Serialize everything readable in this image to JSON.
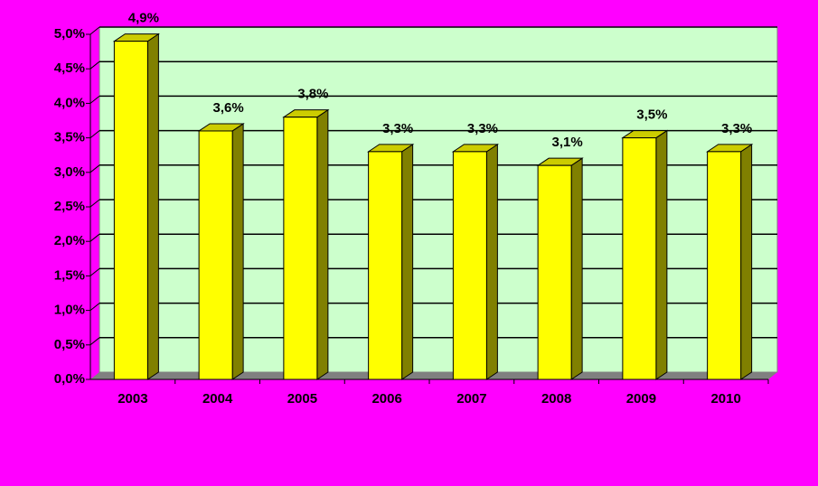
{
  "chart_data": {
    "type": "bar3d",
    "categories": [
      "2003",
      "2004",
      "2005",
      "2006",
      "2007",
      "2008",
      "2009",
      "2010"
    ],
    "values": [
      4.9,
      3.6,
      3.8,
      3.3,
      3.3,
      3.1,
      3.5,
      3.3
    ],
    "value_labels": [
      "4,9%",
      "3,6%",
      "3,8%",
      "3,3%",
      "3,3%",
      "3,1%",
      "3,5%",
      "3,3%"
    ],
    "color": "#ffff00",
    "ylim": [
      0,
      5
    ],
    "yticks": [
      {
        "value": 0,
        "label": "0,0%"
      },
      {
        "value": 0.5,
        "label": "0,5%"
      },
      {
        "value": 1,
        "label": "1,0%"
      },
      {
        "value": 1.5,
        "label": "1,5%"
      },
      {
        "value": 2,
        "label": "2,0%"
      },
      {
        "value": 2.5,
        "label": "2,5%"
      },
      {
        "value": 3,
        "label": "3,0%"
      },
      {
        "value": 3.5,
        "label": "3,5%"
      },
      {
        "value": 4,
        "label": "4,0%"
      },
      {
        "value": 4.5,
        "label": "4,5%"
      },
      {
        "value": 5,
        "label": "5,0%"
      }
    ],
    "grid": true
  }
}
